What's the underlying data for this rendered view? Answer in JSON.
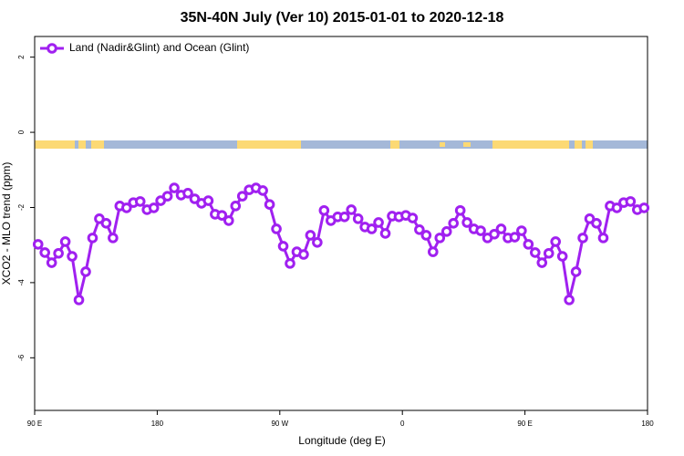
{
  "chart_data": {
    "type": "line",
    "title": "35N-40N July (Ver 10)   2015-01-01 to 2020-12-18",
    "x_label": "Longitude (deg E)",
    "y_label": "XCO2 - MLO trend (ppm)",
    "x": [
      92.5,
      97.5,
      102.5,
      107.5,
      112.5,
      117.5,
      122.5,
      127.5,
      132.5,
      137.5,
      142.5,
      147.5,
      152.5,
      157.5,
      162.5,
      167.5,
      172.5,
      177.5,
      182.5,
      187.5,
      192.5,
      197.5,
      202.5,
      207.5,
      212.5,
      217.5,
      222.5,
      227.5,
      232.5,
      237.5,
      242.5,
      247.5,
      252.5,
      257.5,
      262.5,
      267.5,
      272.5,
      277.5,
      282.5,
      287.5,
      292.5,
      297.5,
      302.5,
      307.5,
      312.5,
      317.5,
      322.5,
      327.5,
      332.5,
      337.5,
      342.5,
      347.5,
      352.5,
      357.5,
      362.5,
      367.5,
      372.5,
      377.5,
      382.5,
      387.5,
      392.5,
      397.5,
      402.5,
      407.5,
      412.5,
      417.5,
      422.5,
      427.5,
      432.5,
      437.5,
      442.5,
      447.5,
      452.5,
      457.5,
      462.5,
      467.5,
      472.5,
      477.5,
      482.5,
      487.5,
      492.5,
      497.5,
      502.5,
      507.5,
      512.5,
      517.5,
      522.5,
      527.5,
      532.5,
      537.5
    ],
    "series": [
      {
        "name": "Land (Nadir&Glint) and Ocean (Glint)",
        "color": "#a020f0",
        "values": [
          -2.98,
          -3.2,
          -3.47,
          -3.22,
          -2.91,
          -3.3,
          -4.46,
          -3.71,
          -2.81,
          -2.3,
          -2.42,
          -2.81,
          -1.96,
          -2.01,
          -1.87,
          -1.84,
          -2.06,
          -2.01,
          -1.82,
          -1.7,
          -1.48,
          -1.67,
          -1.62,
          -1.77,
          -1.89,
          -1.82,
          -2.18,
          -2.21,
          -2.35,
          -1.96,
          -1.7,
          -1.53,
          -1.48,
          -1.55,
          -1.92,
          -2.57,
          -3.03,
          -3.49,
          -3.18,
          -3.25,
          -2.74,
          -2.93,
          -2.08,
          -2.35,
          -2.25,
          -2.25,
          -2.06,
          -2.3,
          -2.52,
          -2.57,
          -2.4,
          -2.69,
          -2.23,
          -2.25,
          -2.21,
          -2.28,
          -2.59,
          -2.74,
          -3.18,
          -2.81,
          -2.64,
          -2.42,
          -2.08,
          -2.4,
          -2.57,
          -2.62,
          -2.81,
          -2.71,
          -2.57,
          -2.81,
          -2.79,
          -2.62,
          -2.98,
          -3.2,
          -3.47,
          -3.22,
          -2.91,
          -3.3,
          -4.46,
          -3.71,
          -2.81,
          -2.3,
          -2.42,
          -2.81,
          -1.96,
          -2.01,
          -1.87,
          -1.84,
          -2.06,
          -2.01
        ]
      }
    ],
    "xlim": [
      90,
      540
    ],
    "xticks": [
      {
        "value": 90,
        "label": "90 E"
      },
      {
        "value": 180,
        "label": "180"
      },
      {
        "value": 270,
        "label": "90 W"
      },
      {
        "value": 360,
        "label": "0"
      },
      {
        "value": 450,
        "label": "90 E"
      },
      {
        "value": 540,
        "label": "180"
      }
    ],
    "ylim": [
      -7.4,
      2.55
    ],
    "yticks": [
      -6,
      -4,
      -2,
      0,
      2
    ],
    "legend": "topleft"
  }
}
